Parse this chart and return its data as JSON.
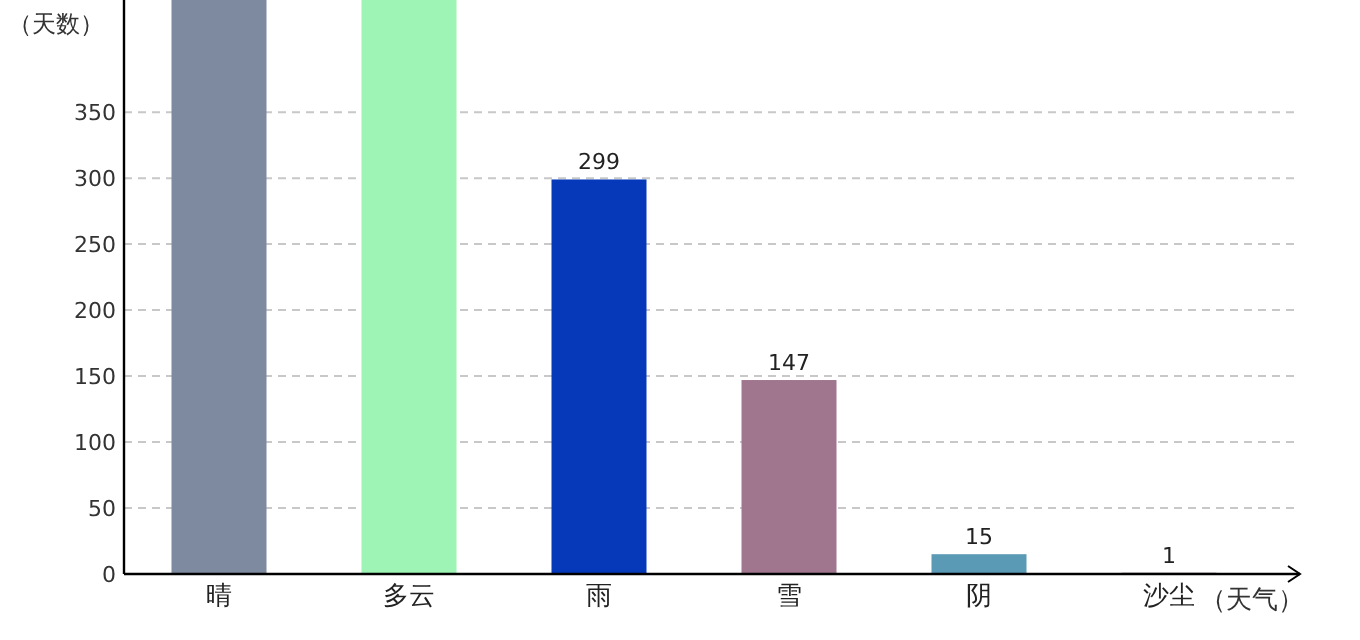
{
  "chart_data": {
    "type": "bar",
    "xlabel": "（天气）",
    "ylabel": "（天数）",
    "categories": [
      "晴",
      "多云",
      "雨",
      "雪",
      "阴",
      "沙尘"
    ],
    "values": [
      435,
      435,
      299,
      147,
      15,
      1
    ],
    "colors": [
      "#7d8aa0",
      "#9df4b4",
      "#0639b9",
      "#a0768f",
      "#5b9ab4",
      "#a09090"
    ],
    "value_labels": [
      null,
      null,
      "299",
      "147",
      "15",
      "1"
    ],
    "ylim": [
      0,
      435
    ],
    "yticks": [
      0,
      50,
      100,
      150,
      200,
      250,
      300,
      350
    ],
    "grid": "y"
  }
}
